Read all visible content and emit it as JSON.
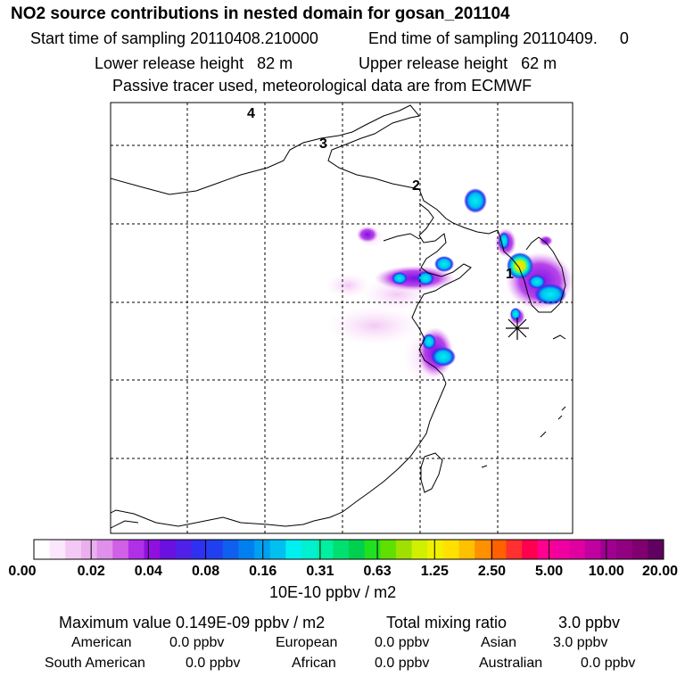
{
  "header": {
    "title": "NO2 source contributions in nested domain for gosan_201104",
    "start_sampling": "Start time of sampling 20110408.210000",
    "end_sampling": "End time of sampling 20110409.     0",
    "lower_release": "Lower release height   82 m",
    "upper_release": "Upper release height   62 m",
    "tracer_note": "Passive tracer used, meteorological data are from ECMWF"
  },
  "map": {
    "grid_labels": [
      "4",
      "3",
      "2",
      "1"
    ],
    "receptor_marker": "asterisk"
  },
  "colorbar": {
    "ticks": [
      "0.00",
      "0.02",
      "0.04",
      "0.08",
      "0.16",
      "0.31",
      "0.63",
      "1.25",
      "2.50",
      "5.00",
      "10.00",
      "20.00"
    ],
    "units": "10E-10 ppbv / m2",
    "colors": [
      "#ffffff",
      "#fbe6fb",
      "#f4c8f4",
      "#eab0ee",
      "#e090ea",
      "#d060e6",
      "#b030e8",
      "#9010e0",
      "#6a10e0",
      "#5020e8",
      "#3030f0",
      "#2040f0",
      "#1060f0",
      "#0080f0",
      "#00a0f0",
      "#00c0f0",
      "#00f0f0",
      "#00f0d0",
      "#00f0a0",
      "#00e070",
      "#00d050",
      "#20e020",
      "#60e000",
      "#a0e000",
      "#d0f000",
      "#f0f000",
      "#ffe000",
      "#ffc000",
      "#ff9000",
      "#ff6000",
      "#ff3030",
      "#ff0050",
      "#ff0090",
      "#f000a0",
      "#e000a0",
      "#c000a0",
      "#a00090",
      "#900080",
      "#800070",
      "#600060"
    ]
  },
  "stats": {
    "maximum": "Maximum value  0.149E-09 ppbv / m2",
    "total_label": "Total mixing ratio",
    "total_value": "3.0 ppbv",
    "american_label": "American",
    "american_value": "0.0 ppbv",
    "european_label": "European",
    "european_value": "0.0 ppbv",
    "asian_label": "Asian",
    "asian_value": "3.0 ppbv",
    "south_american_label": "South American",
    "south_american_value": "0.0 ppbv",
    "african_label": "African",
    "african_value": "0.0 ppbv",
    "australian_label": "Australian",
    "australian_value": "0.0 ppbv"
  }
}
